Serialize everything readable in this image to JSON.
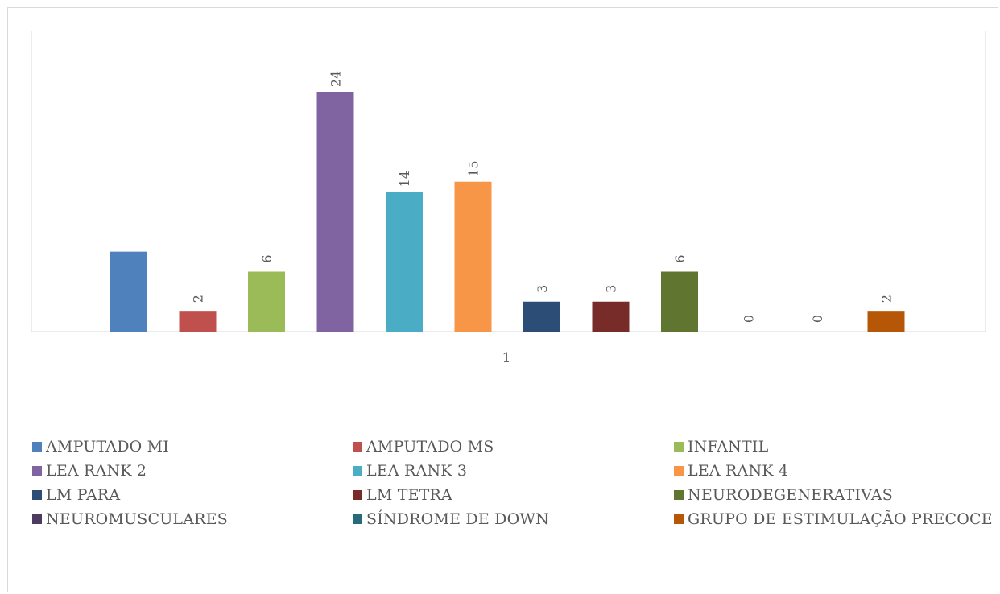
{
  "chart_data": {
    "type": "bar",
    "categories": [
      "1"
    ],
    "series": [
      {
        "name": "AMPUTADO MI",
        "value": 8,
        "color": "#4f81bd",
        "label": ""
      },
      {
        "name": "AMPUTADO MS",
        "value": 2,
        "color": "#c0504d",
        "label": "2"
      },
      {
        "name": "INFANTIL",
        "value": 6,
        "color": "#9bbb59",
        "label": "6"
      },
      {
        "name": "LEA RANK 2",
        "value": 24,
        "color": "#8064a2",
        "label": "24"
      },
      {
        "name": "LEA RANK 3",
        "value": 14,
        "color": "#4bacc6",
        "label": "14"
      },
      {
        "name": "LEA RANK 4",
        "value": 15,
        "color": "#f79646",
        "label": "15"
      },
      {
        "name": "LM PARA",
        "value": 3,
        "color": "#2c4d75",
        "label": "3"
      },
      {
        "name": "LM TETRA",
        "value": 3,
        "color": "#772c2a",
        "label": "3"
      },
      {
        "name": "NEURODEGENERATIVAS",
        "value": 6,
        "color": "#5f7530",
        "label": "6"
      },
      {
        "name": "NEUROMUSCULARES",
        "value": 0,
        "color": "#4d3b62",
        "label": "0"
      },
      {
        "name": "SÍNDROME DE DOWN",
        "value": 0,
        "color": "#276a7c",
        "label": "0"
      },
      {
        "name": "GRUPO DE ESTIMULAÇÃO PRECOCE",
        "value": 2,
        "color": "#b65708",
        "label": "2"
      }
    ],
    "ylim": [
      0,
      24
    ],
    "grid": false,
    "legend_position": "bottom",
    "title": "",
    "xlabel": "",
    "ylabel": ""
  }
}
